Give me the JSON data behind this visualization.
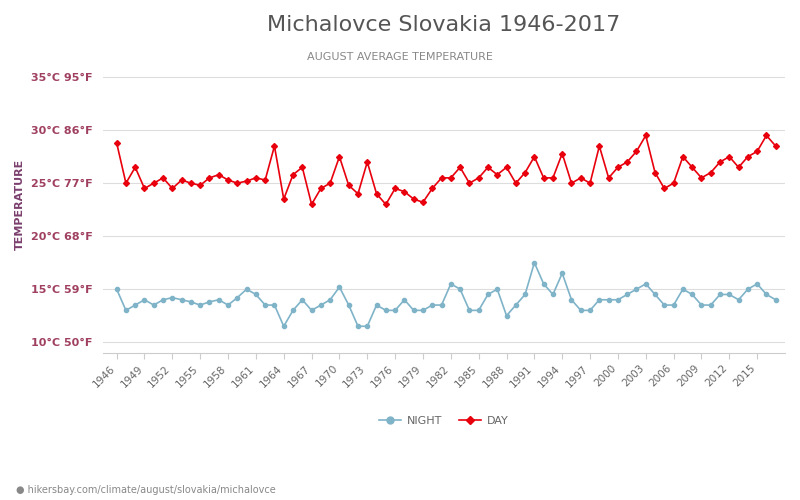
{
  "title": "Michalovce Slovakia 1946-2017",
  "subtitle": "AUGUST AVERAGE TEMPERATURE",
  "ylabel": "TEMPERATURE",
  "years": [
    1946,
    1947,
    1948,
    1949,
    1950,
    1951,
    1952,
    1953,
    1954,
    1955,
    1956,
    1957,
    1958,
    1959,
    1960,
    1961,
    1962,
    1963,
    1964,
    1965,
    1966,
    1967,
    1968,
    1969,
    1970,
    1971,
    1972,
    1973,
    1974,
    1975,
    1976,
    1977,
    1978,
    1979,
    1980,
    1981,
    1982,
    1983,
    1984,
    1985,
    1986,
    1987,
    1988,
    1989,
    1990,
    1991,
    1992,
    1993,
    1994,
    1995,
    1996,
    1997,
    1998,
    1999,
    2000,
    2001,
    2002,
    2003,
    2004,
    2005,
    2006,
    2007,
    2008,
    2009,
    2010,
    2011,
    2012,
    2013,
    2014,
    2015,
    2016,
    2017
  ],
  "day_temps": [
    28.8,
    25.0,
    26.5,
    24.5,
    25.0,
    25.5,
    24.5,
    25.3,
    25.0,
    24.8,
    25.5,
    25.8,
    25.3,
    25.0,
    25.2,
    25.5,
    25.3,
    28.5,
    23.5,
    25.8,
    26.5,
    23.0,
    24.5,
    25.0,
    27.5,
    24.8,
    24.0,
    27.0,
    24.0,
    23.0,
    24.5,
    24.2,
    23.5,
    23.2,
    24.5,
    25.5,
    25.5,
    26.5,
    25.0,
    25.5,
    26.5,
    25.8,
    26.5,
    25.0,
    26.0,
    27.5,
    25.5,
    25.5,
    27.8,
    25.0,
    25.5,
    25.0,
    28.5,
    25.5,
    26.5,
    27.0,
    28.0,
    29.5,
    26.0,
    24.5,
    25.0,
    27.5,
    26.5,
    25.5,
    26.0,
    27.0,
    27.5,
    26.5,
    27.5,
    28.0,
    29.5,
    28.5
  ],
  "night_temps": [
    15.0,
    13.0,
    13.5,
    14.0,
    13.5,
    14.0,
    14.2,
    14.0,
    13.8,
    13.5,
    13.8,
    14.0,
    13.5,
    14.2,
    15.0,
    14.5,
    13.5,
    13.5,
    11.5,
    13.0,
    14.0,
    13.0,
    13.5,
    14.0,
    15.2,
    13.5,
    11.5,
    11.5,
    13.5,
    13.0,
    13.0,
    14.0,
    13.0,
    13.0,
    13.5,
    13.5,
    15.5,
    15.0,
    13.0,
    13.0,
    14.5,
    15.0,
    12.5,
    13.5,
    14.5,
    17.5,
    15.5,
    14.5,
    16.5,
    14.0,
    13.0,
    13.0,
    14.0,
    14.0,
    14.0,
    14.5,
    15.0,
    15.5,
    14.5,
    13.5,
    13.5,
    15.0,
    14.5,
    13.5,
    13.5,
    14.5,
    14.5,
    14.0,
    15.0,
    15.5,
    14.5,
    14.0
  ],
  "day_color": "#e8000d",
  "night_color": "#7fb3c8",
  "day_marker": "D",
  "night_marker": "o",
  "marker_size": 3,
  "ylim": [
    9,
    37
  ],
  "yticks_c": [
    10,
    15,
    20,
    25,
    30,
    35
  ],
  "yticks_labels": [
    "10°C 50°F",
    "15°C 59°F",
    "20°C 68°F",
    "25°C 77°F",
    "30°C 86°F",
    "35°C 95°F"
  ],
  "xtick_years": [
    1946,
    1949,
    1952,
    1955,
    1958,
    1961,
    1964,
    1967,
    1970,
    1973,
    1976,
    1979,
    1982,
    1985,
    1988,
    1991,
    1994,
    1997,
    2000,
    2003,
    2006,
    2009,
    2012,
    2015
  ],
  "title_color": "#555555",
  "subtitle_color": "#888888",
  "ylabel_color": "#7b3f6e",
  "ytick_color": "#a04060",
  "bg_color": "#ffffff",
  "grid_color": "#dddddd",
  "footer_text": "hikersbay.com/climate/august/slovakia/michalovce",
  "footer_color": "#888888"
}
